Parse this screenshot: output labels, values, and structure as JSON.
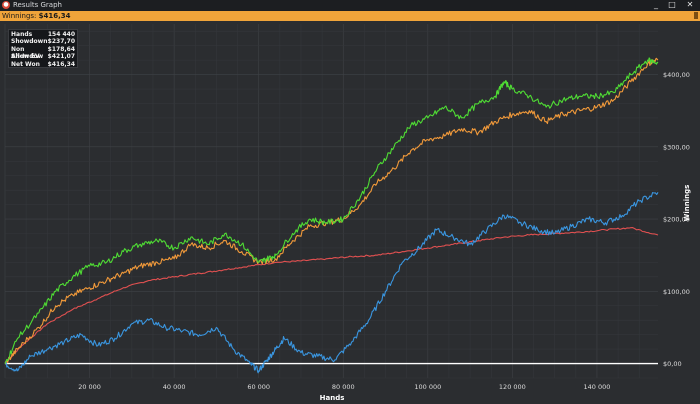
{
  "window": {
    "title": "Results Graph",
    "controls": {
      "minimize": "_",
      "maximize": "□",
      "close": "✕"
    }
  },
  "banner": {
    "label": "Winnings:",
    "value": "$416,34"
  },
  "stats": [
    {
      "label": "Hands",
      "value": "154 440"
    },
    {
      "label": "Showdown",
      "value": "$237,70"
    },
    {
      "label": "Non Showdow",
      "value": "$178,64"
    },
    {
      "label": "All-In EV",
      "value": "$421,07"
    },
    {
      "label": "Net Won",
      "value": "$416,34"
    }
  ],
  "chart_data": {
    "type": "line",
    "xlabel": "Hands",
    "ylabel": "Winnings",
    "xlim": [
      0,
      154440
    ],
    "ylim": [
      -20,
      470
    ],
    "xticks": [
      20000,
      40000,
      60000,
      80000,
      100000,
      120000,
      140000
    ],
    "xtick_labels": [
      "20 000",
      "40 000",
      "60 000",
      "80 000",
      "100 000",
      "120 000",
      "140 000"
    ],
    "yticks": [
      0,
      100,
      200,
      300,
      400
    ],
    "ytick_labels": [
      "$0,00",
      "$100,00",
      "$200,00",
      "$300,00",
      "$400,00"
    ],
    "grid": true,
    "colors": {
      "net_won": "#4fdc34",
      "all_in_ev": "#f29a3a",
      "non_showdown": "#e05050",
      "showdown": "#3a96e0",
      "zero_line": "#ffffff"
    },
    "series": [
      {
        "key": "net_won",
        "x": [
          0,
          3000,
          8000,
          12000,
          16000,
          20000,
          24000,
          28000,
          32000,
          36000,
          40000,
          44000,
          48000,
          52000,
          56000,
          60000,
          62000,
          64000,
          68000,
          72000,
          76000,
          80000,
          84000,
          88000,
          92000,
          96000,
          100000,
          104000,
          108000,
          112000,
          116000,
          118000,
          120000,
          124000,
          128000,
          132000,
          136000,
          140000,
          144000,
          148000,
          152000,
          154440
        ],
        "y": [
          0,
          35,
          70,
          100,
          120,
          135,
          140,
          155,
          165,
          170,
          160,
          175,
          165,
          180,
          165,
          140,
          145,
          150,
          180,
          200,
          195,
          200,
          230,
          270,
          300,
          330,
          340,
          355,
          340,
          360,
          370,
          390,
          380,
          370,
          355,
          365,
          370,
          370,
          375,
          400,
          420,
          416
        ]
      },
      {
        "key": "all_in_ev",
        "x": [
          0,
          3000,
          8000,
          12000,
          16000,
          20000,
          24000,
          28000,
          32000,
          36000,
          40000,
          44000,
          48000,
          52000,
          56000,
          60000,
          64000,
          68000,
          72000,
          76000,
          80000,
          84000,
          88000,
          92000,
          96000,
          100000,
          104000,
          108000,
          112000,
          116000,
          120000,
          124000,
          128000,
          132000,
          136000,
          140000,
          144000,
          148000,
          152000,
          154440
        ],
        "y": [
          0,
          20,
          50,
          80,
          95,
          105,
          115,
          125,
          135,
          140,
          145,
          165,
          160,
          170,
          155,
          140,
          145,
          170,
          190,
          195,
          200,
          220,
          250,
          270,
          295,
          310,
          315,
          325,
          320,
          335,
          345,
          350,
          335,
          345,
          350,
          355,
          365,
          390,
          415,
          421
        ]
      },
      {
        "key": "non_showdown",
        "x": [
          0,
          4000,
          10000,
          16000,
          22000,
          28000,
          34000,
          40000,
          46000,
          52000,
          58000,
          64000,
          70000,
          76000,
          82000,
          88000,
          94000,
          100000,
          106000,
          112000,
          118000,
          124000,
          130000,
          136000,
          142000,
          148000,
          154440
        ],
        "y": [
          0,
          25,
          55,
          75,
          90,
          105,
          115,
          120,
          125,
          130,
          135,
          140,
          142,
          145,
          148,
          150,
          155,
          160,
          165,
          170,
          175,
          178,
          180,
          182,
          185,
          188,
          178
        ]
      },
      {
        "key": "showdown",
        "x": [
          0,
          3000,
          6000,
          10000,
          14000,
          18000,
          22000,
          26000,
          30000,
          34000,
          38000,
          42000,
          46000,
          50000,
          54000,
          58000,
          60000,
          62000,
          64000,
          66000,
          70000,
          74000,
          78000,
          82000,
          86000,
          90000,
          94000,
          98000,
          102000,
          106000,
          110000,
          114000,
          118000,
          122000,
          126000,
          130000,
          134000,
          138000,
          142000,
          146000,
          150000,
          154440
        ],
        "y": [
          0,
          -10,
          10,
          20,
          30,
          40,
          25,
          35,
          55,
          60,
          50,
          45,
          40,
          50,
          20,
          0,
          -10,
          5,
          20,
          35,
          15,
          10,
          5,
          30,
          60,
          100,
          140,
          160,
          185,
          175,
          165,
          185,
          205,
          195,
          185,
          180,
          190,
          200,
          195,
          205,
          225,
          237
        ]
      }
    ]
  }
}
